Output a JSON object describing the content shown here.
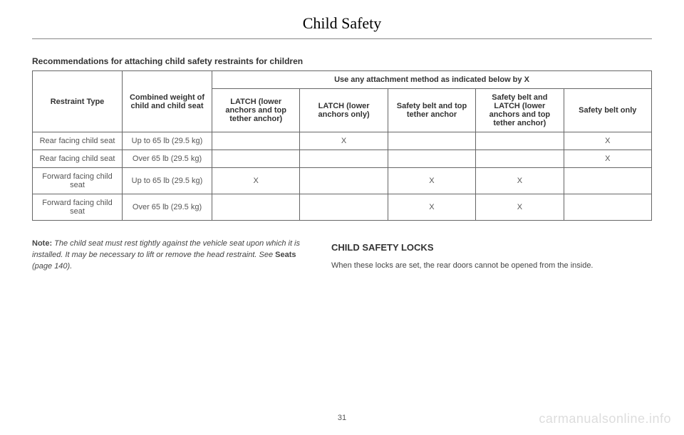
{
  "page": {
    "title": "Child Safety",
    "number": "31",
    "watermark": "carmanualsonline.info"
  },
  "table": {
    "caption": "Recommendations for attaching child safety restraints for children",
    "columns": {
      "restraint_type": "Restraint Type",
      "combined_weight": "Combined weight of child and child seat",
      "use_any_header": "Use any attachment method as indicated below by X",
      "m1": "LATCH (lower anchors and top tether anchor)",
      "m2": "LATCH (lower anchors only)",
      "m3": "Safety belt and top tether anchor",
      "m4": "Safety belt and LATCH (lower anchors and top tether anchor)",
      "m5": "Safety belt only"
    },
    "rows": [
      {
        "type": "Rear facing child seat",
        "weight": "Up to 65 lb (29.5 kg)",
        "m1": "",
        "m2": "X",
        "m3": "",
        "m4": "",
        "m5": "X"
      },
      {
        "type": "Rear facing child seat",
        "weight": "Over 65 lb (29.5 kg)",
        "m1": "",
        "m2": "",
        "m3": "",
        "m4": "",
        "m5": "X"
      },
      {
        "type": "Forward facing child seat",
        "weight": "Up to 65 lb (29.5 kg)",
        "m1": "X",
        "m2": "",
        "m3": "X",
        "m4": "X",
        "m5": ""
      },
      {
        "type": "Forward facing child seat",
        "weight": "Over 65 lb (29.5 kg)",
        "m1": "",
        "m2": "",
        "m3": "X",
        "m4": "X",
        "m5": ""
      }
    ]
  },
  "note": {
    "label": "Note:",
    "text": " The child seat must rest tightly against the vehicle seat upon which it is installed. It may be necessary to lift or remove the head restraint.  See ",
    "seats": "Seats",
    "page_ref": " (page 140)."
  },
  "section": {
    "heading": "CHILD SAFETY LOCKS",
    "body": "When these locks are set, the rear doors cannot be opened from the inside."
  }
}
